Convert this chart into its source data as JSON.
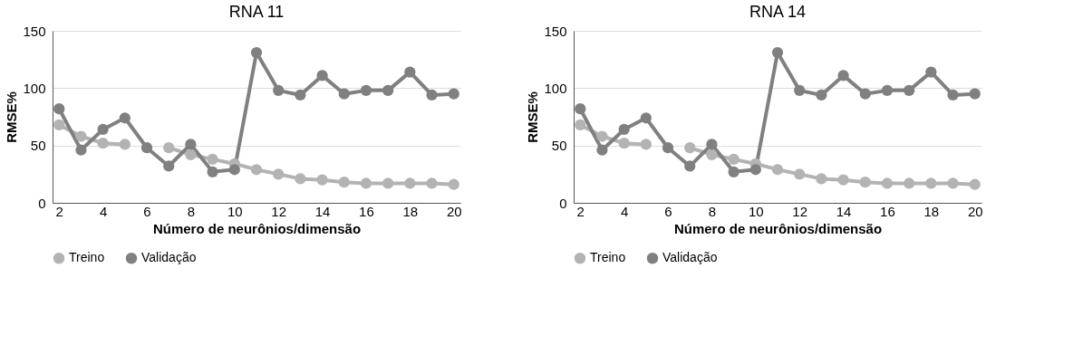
{
  "chart_data": [
    {
      "type": "line",
      "title": "RNA 11",
      "xlabel": "Número de neurônios/dimensão",
      "ylabel": "RMSE%",
      "x": [
        2,
        3,
        4,
        5,
        6,
        7,
        8,
        9,
        10,
        11,
        12,
        13,
        14,
        15,
        16,
        17,
        18,
        19,
        20
      ],
      "xlim": [
        1.7,
        20.3
      ],
      "xticks": [
        2,
        4,
        6,
        8,
        10,
        12,
        14,
        16,
        18,
        20
      ],
      "ylim": [
        0,
        150
      ],
      "yticks": [
        0,
        50,
        100,
        150
      ],
      "grid": "y",
      "legend": "bottom",
      "marker": "circle",
      "line_style": "solid",
      "series": [
        {
          "name": "Treino",
          "color": "#b3b3b3",
          "values": [
            68,
            58,
            52,
            51,
            null,
            48,
            42,
            38,
            34,
            29,
            25,
            21,
            20,
            18,
            17,
            17,
            17,
            17,
            16
          ]
        },
        {
          "name": "Validação",
          "color": "#808080",
          "values": [
            82,
            46,
            64,
            74,
            48,
            32,
            51,
            27,
            29,
            131,
            98,
            94,
            111,
            95,
            98,
            98,
            114,
            94,
            95
          ]
        }
      ]
    },
    {
      "type": "line",
      "title": "RNA 14",
      "xlabel": "Número de neurônios/dimensão",
      "ylabel": "RMSE%",
      "x": [
        2,
        3,
        4,
        5,
        6,
        7,
        8,
        9,
        10,
        11,
        12,
        13,
        14,
        15,
        16,
        17,
        18,
        19,
        20
      ],
      "xlim": [
        1.7,
        20.3
      ],
      "xticks": [
        2,
        4,
        6,
        8,
        10,
        12,
        14,
        16,
        18,
        20
      ],
      "ylim": [
        0,
        150
      ],
      "yticks": [
        0,
        50,
        100,
        150
      ],
      "grid": "y",
      "legend": "bottom",
      "marker": "circle",
      "line_style": "solid",
      "series": [
        {
          "name": "Treino",
          "color": "#b3b3b3",
          "values": [
            68,
            58,
            52,
            51,
            null,
            48,
            42,
            38,
            34,
            29,
            25,
            21,
            20,
            18,
            17,
            17,
            17,
            17,
            16
          ]
        },
        {
          "name": "Validação",
          "color": "#808080",
          "values": [
            82,
            46,
            64,
            74,
            48,
            32,
            51,
            27,
            29,
            131,
            98,
            94,
            111,
            95,
            98,
            98,
            114,
            94,
            95
          ]
        }
      ]
    }
  ]
}
